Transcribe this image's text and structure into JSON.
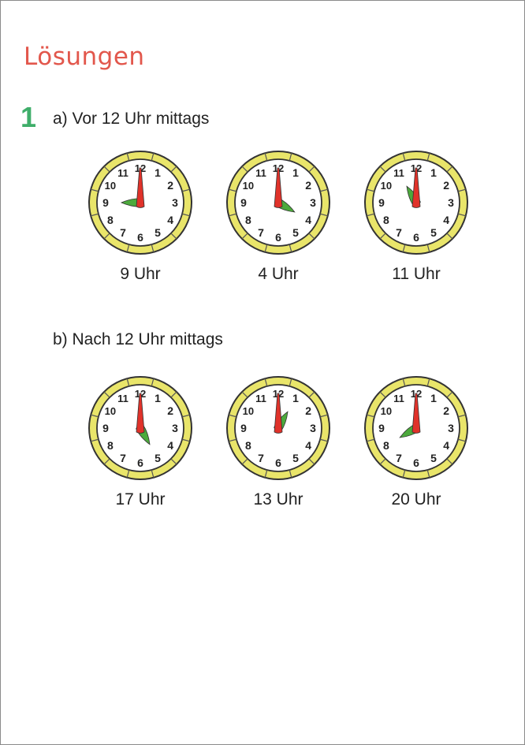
{
  "title": "Lösungen",
  "exercise_number": "1",
  "sections": [
    {
      "heading": "a) Vor 12 Uhr mittags",
      "clocks": [
        {
          "label": "9 Uhr",
          "hour": 9
        },
        {
          "label": "4 Uhr",
          "hour": 4
        },
        {
          "label": "11 Uhr",
          "hour": 11
        }
      ]
    },
    {
      "heading": "b) Nach 12 Uhr mittags",
      "clocks": [
        {
          "label": "17 Uhr",
          "hour": 5
        },
        {
          "label": "13 Uhr",
          "hour": 1
        },
        {
          "label": "20 Uhr",
          "hour": 8
        }
      ]
    }
  ],
  "colors": {
    "title": "#e2574c",
    "number": "#3fae6a",
    "rim": "#e9e56a",
    "minute_hand": "#e0322a",
    "hour_hand": "#4caa3c"
  }
}
